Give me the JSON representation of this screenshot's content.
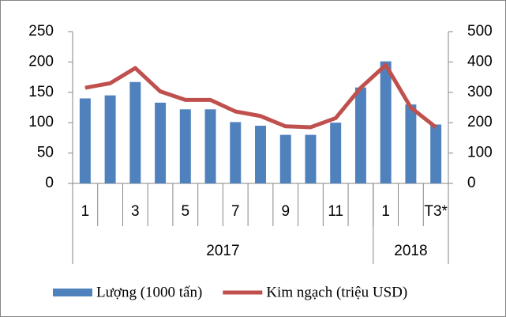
{
  "chart_data": {
    "type": "bar-line",
    "categories": [
      "1",
      null,
      "3",
      null,
      "5",
      null,
      "7",
      null,
      "9",
      null,
      "11",
      null,
      "1",
      null,
      "T3*"
    ],
    "groups": [
      {
        "name": "2017",
        "count": 12
      },
      {
        "name": "2018",
        "count": 3
      }
    ],
    "series": [
      {
        "name": "Lượng (1000 tấn)",
        "type": "bar",
        "axis": "y",
        "color": "#4f81bd",
        "values": [
          140,
          145,
          167,
          133,
          122,
          122,
          101,
          95,
          80,
          80,
          100,
          158,
          201,
          130,
          97
        ]
      },
      {
        "name": "Kim ngạch (triệu USD)",
        "type": "line",
        "axis": "y2",
        "color": "#c0504d",
        "values": [
          315,
          330,
          380,
          303,
          275,
          275,
          237,
          222,
          188,
          185,
          215,
          315,
          390,
          250,
          185
        ]
      }
    ],
    "ylim": [
      0,
      250
    ],
    "yticks": [
      0,
      50,
      100,
      150,
      200,
      250
    ],
    "y2lim": [
      0,
      500
    ],
    "y2ticks": [
      0,
      100,
      200,
      300,
      400,
      500
    ],
    "legend": "bottom"
  }
}
